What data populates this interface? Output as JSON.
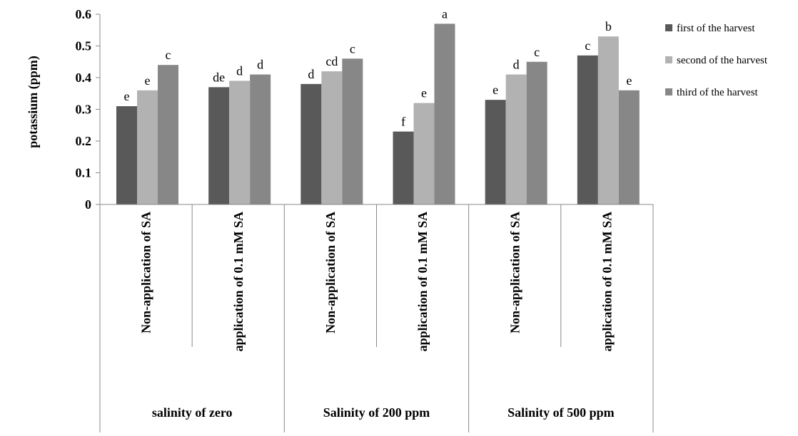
{
  "chart_data": {
    "type": "bar",
    "title": "",
    "ylabel": "potassium (ppm)",
    "xlabel": "",
    "ylim": [
      0,
      0.6
    ],
    "yticks": [
      0,
      0.1,
      0.2,
      0.3,
      0.4,
      0.5,
      0.6
    ],
    "ytick_labels": [
      "0",
      "0.1",
      "0.2",
      "0.3",
      "0.4",
      "0.5",
      "0.6"
    ],
    "grid": false,
    "legend_position": "right",
    "categories": [
      "Non-application of SA",
      "application of 0.1 mM SA",
      "Non-application of SA",
      "application of 0.1 mM SA",
      "Non-application of SA",
      "application of 0.1 mM SA"
    ],
    "groups": [
      {
        "label": "salinity of zero",
        "span": 2
      },
      {
        "label": "Salinity of 200 ppm",
        "span": 2
      },
      {
        "label": "Salinity of 500 ppm",
        "span": 2
      }
    ],
    "series": [
      {
        "name": "first of the harvest",
        "color": "#595959",
        "values": [
          0.31,
          0.37,
          0.38,
          0.23,
          0.33,
          0.47
        ],
        "labels": [
          "e",
          "de",
          "d",
          "f",
          "e",
          "c"
        ]
      },
      {
        "name": "second of the harvest",
        "color": "#b2b2b2",
        "values": [
          0.36,
          0.39,
          0.42,
          0.32,
          0.41,
          0.53
        ],
        "labels": [
          "e",
          "d",
          "cd",
          "e",
          "d",
          "b"
        ]
      },
      {
        "name": "third of the harvest",
        "color": "#878787",
        "values": [
          0.44,
          0.41,
          0.46,
          0.57,
          0.45,
          0.36
        ],
        "labels": [
          "c",
          "d",
          "c",
          "a",
          "c",
          "e"
        ]
      }
    ]
  }
}
